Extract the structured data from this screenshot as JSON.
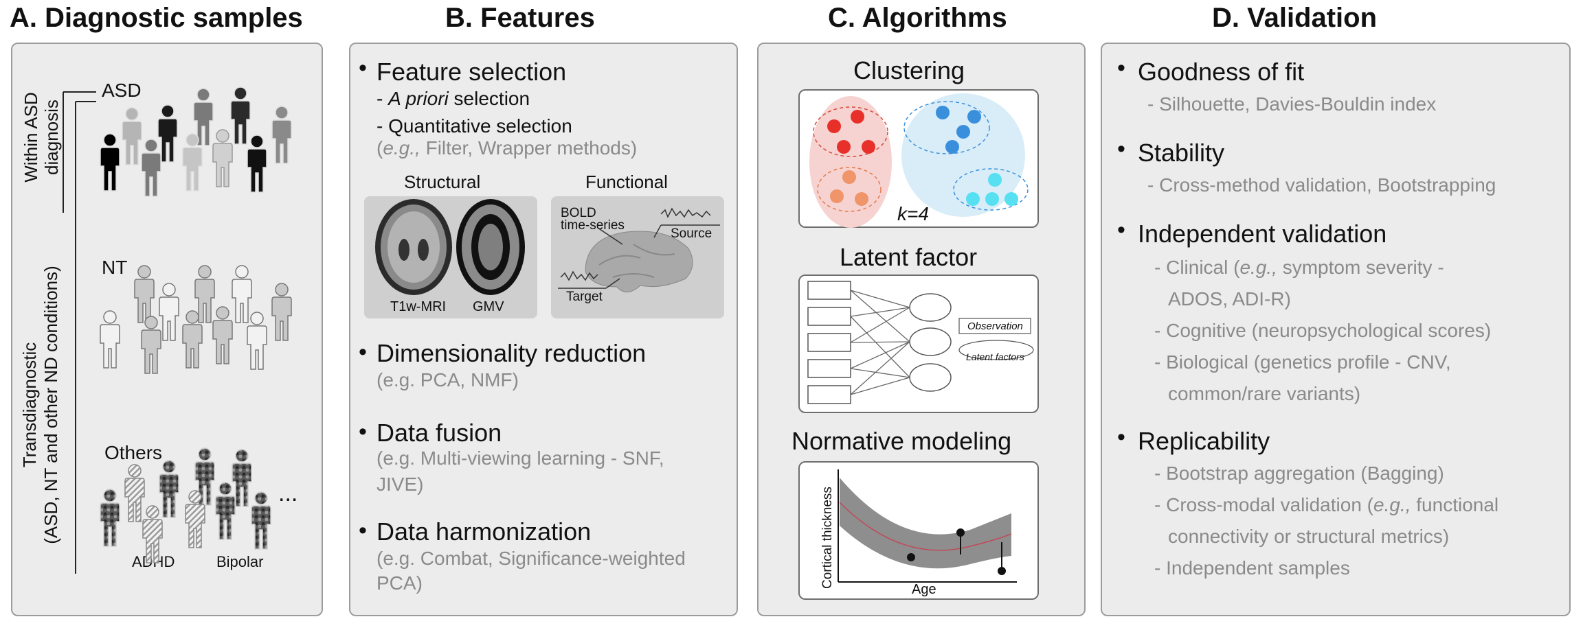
{
  "panels": {
    "a": {
      "title": "A. Diagnostic samples",
      "within_label_1": "Within ASD",
      "within_label_2": "diagnosis",
      "trans_label_1": "Transdiagnostic",
      "trans_label_2": "(ASD, NT and other ND conditions)",
      "groups": {
        "asd": "ASD",
        "nt": "NT",
        "others": "Others",
        "adhd": "ADHD",
        "bipolar": "Bipolar",
        "ellipsis": "..."
      }
    },
    "b": {
      "title": "B. Features",
      "feature_selection": {
        "heading": "Feature selection",
        "apriori_dash": "- ",
        "apriori_italic": "A priori",
        "apriori_rest": " selection",
        "quant": "- Quantitative selection",
        "eg_open": "(",
        "eg_italic": "e.g.,",
        "eg_rest": " Filter, Wrapper methods)"
      },
      "structural": {
        "title": "Structural",
        "t1w": "T1w-MRI",
        "gmv": "GMV"
      },
      "functional": {
        "title": "Functional",
        "bold_1": "BOLD",
        "bold_2": "time-series",
        "source": "Source",
        "target": "Target"
      },
      "dim_reduction": {
        "heading": "Dimensionality reduction",
        "examples": "(e.g. PCA, NMF)"
      },
      "data_fusion": {
        "heading": "Data fusion",
        "examples_1": "(e.g. Multi-viewing learning - SNF,",
        "examples_2": "JIVE)"
      },
      "harmonization": {
        "heading": "Data harmonization",
        "examples_1": "(e.g. Combat, Significance-weighted",
        "examples_2": "PCA)"
      }
    },
    "c": {
      "title": "C. Algorithms",
      "clustering": {
        "heading": "Clustering",
        "k_label": "k=4"
      },
      "latent": {
        "heading": "Latent factor",
        "observation": "Observation",
        "latent_factors": "Latent factors"
      },
      "normative": {
        "heading": "Normative modeling",
        "ylabel": "Cortical thickness",
        "xlabel": "Age"
      }
    },
    "d": {
      "title": "D. Validation",
      "goodness": {
        "heading": "Goodness of fit",
        "line1": "- Silhouette, Davies-Bouldin index"
      },
      "stability": {
        "heading": "Stability",
        "line1": "- Cross-method validation, Bootstrapping"
      },
      "independent": {
        "heading": "Independent validation",
        "clinical_a": "- Clinical (",
        "clinical_italic": "e.g.,",
        "clinical_b": " symptom severity -",
        "clinical_2": "ADOS, ADI-R)",
        "cognitive": "- Cognitive (neuropsychological scores)",
        "biological_1": "- Biological (genetics profile - CNV,",
        "biological_2": "common/rare variants)"
      },
      "replicability": {
        "heading": "Replicability",
        "bagging": "- Bootstrap aggregation (Bagging)",
        "crossmodal_a": "- Cross-modal validation (",
        "crossmodal_italic": "e.g.,",
        "crossmodal_b": " functional",
        "crossmodal_2": "connectivity or structural metrics)",
        "samples": "- Independent samples"
      }
    }
  },
  "colors": {
    "panel_bg": "#ececec",
    "panel_border": "#9c9c9c",
    "gray_text": "#8a8a8a",
    "cluster_red": "#e8302a",
    "cluster_orange": "#f0946a",
    "cluster_blue": "#3a8fdc",
    "cluster_cyan": "#56e0f2"
  }
}
